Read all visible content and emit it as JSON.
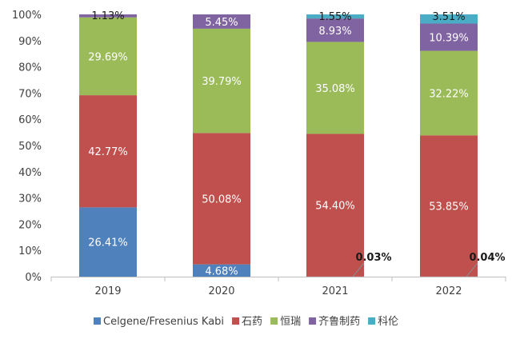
{
  "chart_data": {
    "type": "bar",
    "stacked": true,
    "percent": true,
    "title": "",
    "xlabel": "",
    "ylabel": "",
    "ylim": [
      0,
      100
    ],
    "yticks": [
      "0%",
      "10%",
      "20%",
      "30%",
      "40%",
      "50%",
      "60%",
      "70%",
      "80%",
      "90%",
      "100%"
    ],
    "categories": [
      "2019",
      "2020",
      "2021",
      "2022"
    ],
    "series": [
      {
        "name": "Celgene/Fresenius Kabi",
        "color": "#4F81BD",
        "values": [
          26.41,
          4.68,
          0.03,
          0.04
        ],
        "labels": [
          "26.41%",
          "4.68%",
          "0.03%",
          "0.04%"
        ]
      },
      {
        "name": "石药",
        "color": "#C0504D",
        "values": [
          42.77,
          50.08,
          54.4,
          53.85
        ],
        "labels": [
          "42.77%",
          "50.08%",
          "54.40%",
          "53.85%"
        ]
      },
      {
        "name": "恒瑞",
        "color": "#9BBB59",
        "values": [
          29.69,
          39.79,
          35.08,
          32.22
        ],
        "labels": [
          "29.69%",
          "39.79%",
          "35.08%",
          "32.22%"
        ]
      },
      {
        "name": "齐鲁制药",
        "color": "#8064A2",
        "values": [
          1.13,
          5.45,
          8.93,
          10.39
        ],
        "labels": [
          "1.13%",
          "5.45%",
          "8.93%",
          "10.39%"
        ]
      },
      {
        "name": "科伦",
        "color": "#4BACC6",
        "values": [
          0,
          0,
          1.55,
          3.51
        ],
        "labels": [
          "",
          "",
          "1.55%",
          "3.51%"
        ]
      }
    ],
    "legend_position": "bottom",
    "grid": false
  }
}
